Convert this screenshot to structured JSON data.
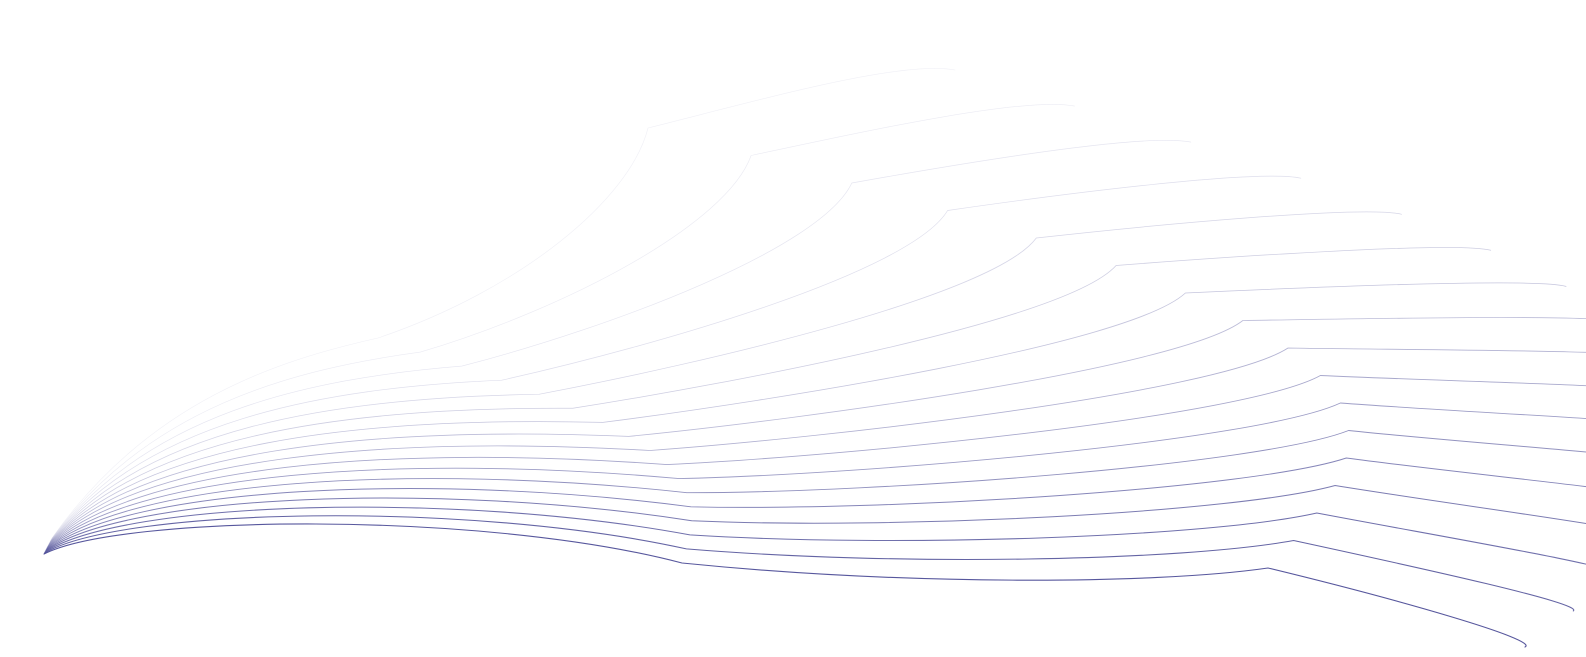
{
  "artwork": {
    "stroke_color": "#3a3a8c",
    "curve_count": 17,
    "opacity_range": [
      0.08,
      0.85
    ]
  }
}
